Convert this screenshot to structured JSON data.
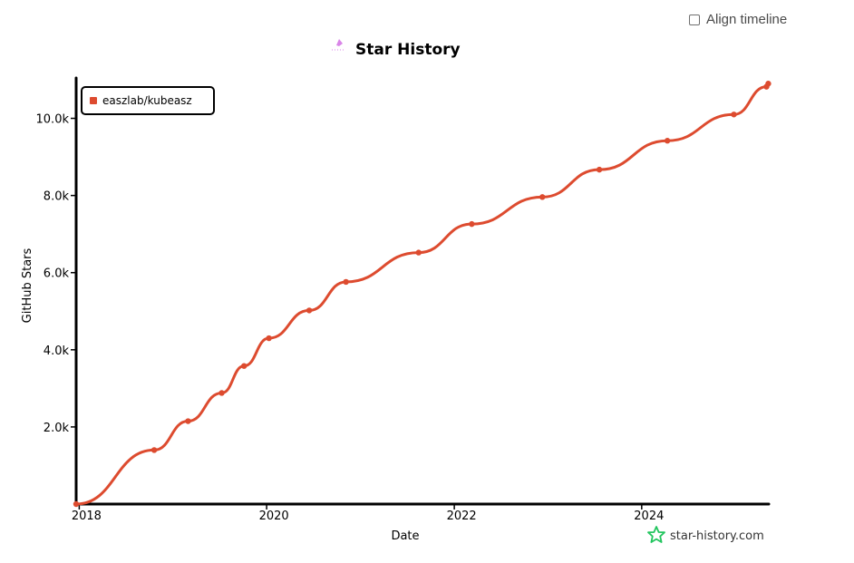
{
  "controls": {
    "align_timeline_label": "Align timeline",
    "align_timeline_checked": false
  },
  "watermark": {
    "text": "star-history.com",
    "icon": "star-icon",
    "icon_color": "#22c55e"
  },
  "chart_data": {
    "type": "line",
    "title": "Star History",
    "xlabel": "Date",
    "ylabel": "GitHub Stars",
    "x_axis": {
      "type": "date",
      "range": [
        "2017-12-20",
        "2025-05-10"
      ],
      "tick_labels": [
        "2018",
        "2020",
        "2022",
        "2024"
      ],
      "tick_dates": [
        "2018-01-01",
        "2020-01-01",
        "2022-01-01",
        "2024-01-01"
      ]
    },
    "y_axis": {
      "range": [
        0,
        11000
      ],
      "tick_labels": [
        "2.0k",
        "4.0k",
        "6.0k",
        "8.0k",
        "10.0k"
      ],
      "tick_values": [
        2000,
        4000,
        6000,
        8000,
        10000
      ]
    },
    "grid": false,
    "legend_position": "top-left",
    "series": [
      {
        "name": "easzlab/kubeasz",
        "color": "#dd4b2f",
        "x": [
          "2017-12-20",
          "2018-10-20",
          "2019-03-01",
          "2019-07-10",
          "2019-10-05",
          "2020-01-10",
          "2020-06-15",
          "2020-11-05",
          "2021-08-15",
          "2022-03-10",
          "2022-12-10",
          "2023-07-20",
          "2024-04-10",
          "2024-12-25",
          "2025-05-01",
          "2025-05-08"
        ],
        "values": [
          0,
          1400,
          2150,
          2880,
          3580,
          4300,
          5020,
          5760,
          6520,
          7260,
          7960,
          8670,
          9420,
          10100,
          10820,
          10900
        ]
      }
    ]
  }
}
